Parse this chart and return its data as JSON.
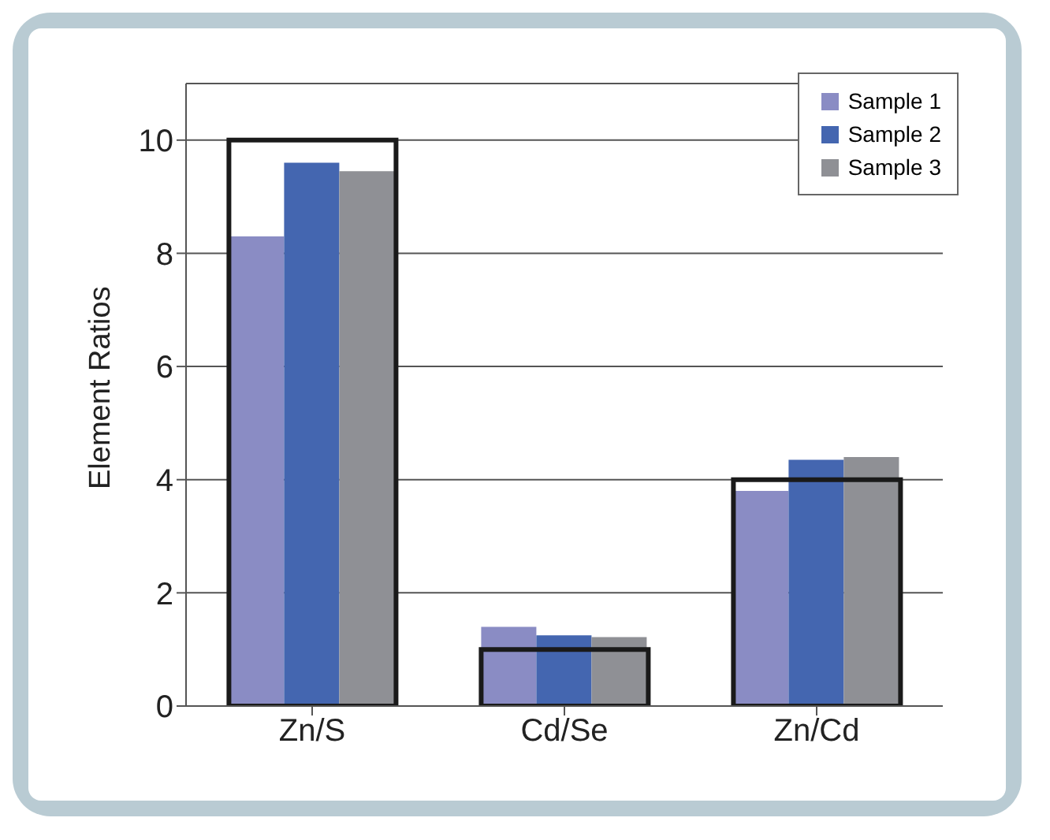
{
  "chart_data": {
    "type": "bar",
    "ylabel": "Element Ratios",
    "categories": [
      "Zn/S",
      "Cd/Se",
      "Zn/Cd"
    ],
    "series": [
      {
        "name": "Sample 1",
        "color": "#8a8cc4",
        "values": [
          8.3,
          1.4,
          3.8
        ]
      },
      {
        "name": "Sample 2",
        "color": "#4466b0",
        "values": [
          9.6,
          1.25,
          4.35
        ]
      },
      {
        "name": "Sample 3",
        "color": "#8f9095",
        "values": [
          9.45,
          1.22,
          4.4
        ]
      },
      {
        "type": "bar",
        "color": "#1a1a1a",
        "values": [
          10,
          1,
          4
        ]
      }
    ],
    "ylim": [
      0,
      11
    ],
    "yticks": [
      0,
      2,
      4,
      6,
      8,
      10
    ],
    "grid": "y",
    "legend": "top right"
  }
}
